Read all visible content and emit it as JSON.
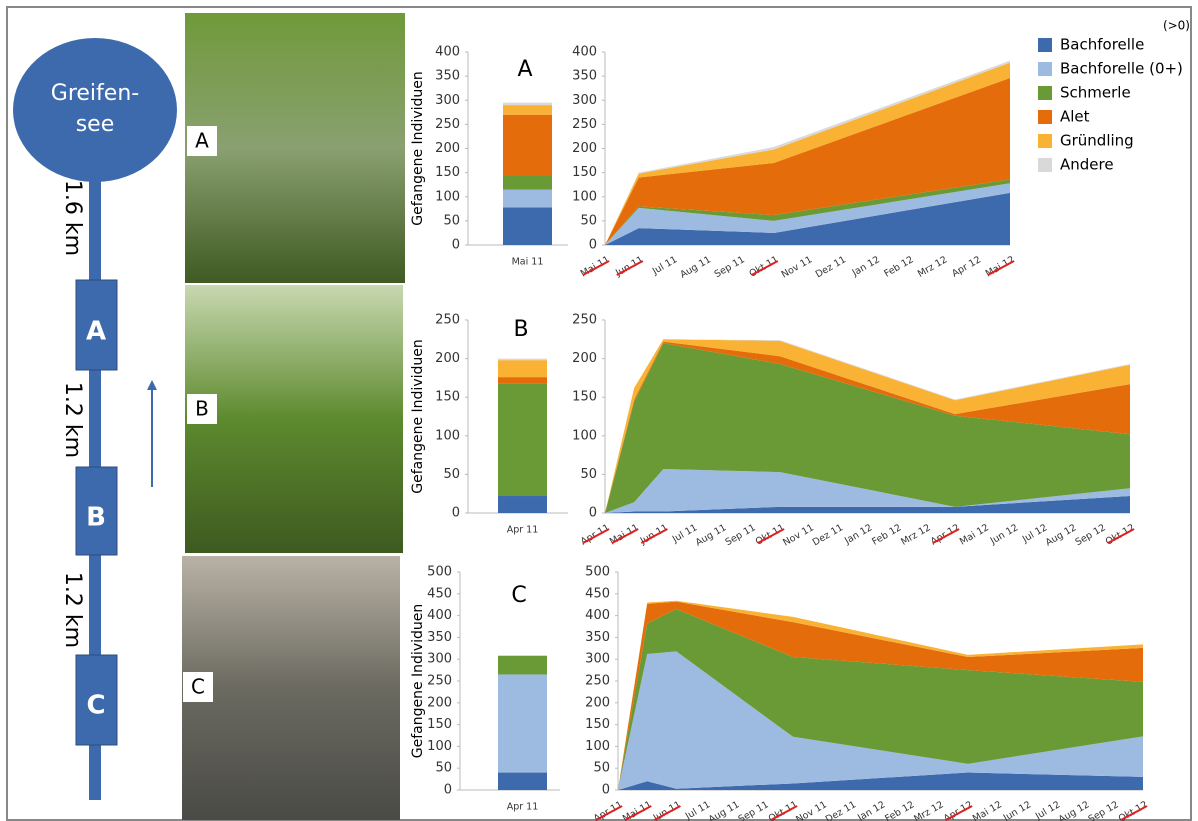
{
  "diagram": {
    "lake": [
      "Greifen-",
      "see"
    ],
    "stations": [
      "A",
      "B",
      "C"
    ],
    "distances": [
      "1.6 km",
      "1.2 km",
      "1.2 km"
    ],
    "photo_labels": [
      "A",
      "B",
      "C"
    ],
    "note": "(>0)"
  },
  "chart_data": [
    {
      "type": "bar",
      "title": "A",
      "y_label": "Gefangene Individuen",
      "categories": [
        "Mai 11"
      ],
      "ylim": [
        0,
        400
      ],
      "yticks": [
        0,
        50,
        100,
        150,
        200,
        250,
        300,
        350,
        400
      ],
      "series": [
        {
          "name": "Bachforelle",
          "color": "#3d6aad",
          "values": [
            78
          ]
        },
        {
          "name": "Bachforelle (0+)",
          "color": "#9dbbe0",
          "values": [
            37
          ]
        },
        {
          "name": "Schmerle",
          "color": "#6a9a35",
          "values": [
            30
          ]
        },
        {
          "name": "Alet",
          "color": "#e46c0a",
          "values": [
            125
          ]
        },
        {
          "name": "Gründling",
          "color": "#f9b233",
          "values": [
            20
          ]
        },
        {
          "name": "Andere",
          "color": "#d9d9d9",
          "values": [
            5
          ]
        }
      ]
    },
    {
      "type": "area",
      "legend": "top-right",
      "categories": [
        "Mai 11",
        "Jun 11",
        "Jul 11",
        "Aug 11",
        "Sep 11",
        "Okt 11",
        "Nov 11",
        "Dez 11",
        "Jan 12",
        "Feb 12",
        "Mrz 12",
        "Apr 12",
        "Mai 12"
      ],
      "x": [
        "Mai 11",
        "Jun 11",
        "Okt 11",
        "Mai 12"
      ],
      "ylim": [
        0,
        400
      ],
      "yticks": [
        0,
        50,
        100,
        150,
        200,
        250,
        300,
        350,
        400
      ],
      "series": [
        {
          "name": "Bachforelle",
          "color": "#3d6aad",
          "values": [
            0,
            35,
            25,
            108
          ]
        },
        {
          "name": "Bachforelle (0+)",
          "color": "#9dbbe0",
          "values": [
            0,
            42,
            25,
            20
          ]
        },
        {
          "name": "Schmerle",
          "color": "#6a9a35",
          "values": [
            0,
            3,
            12,
            8
          ]
        },
        {
          "name": "Alet",
          "color": "#e46c0a",
          "values": [
            0,
            60,
            108,
            210
          ]
        },
        {
          "name": "Gründling",
          "color": "#f9b233",
          "values": [
            0,
            8,
            28,
            32
          ]
        },
        {
          "name": "Andere",
          "color": "#d9d9d9",
          "values": [
            0,
            2,
            5,
            4
          ]
        }
      ]
    },
    {
      "type": "bar",
      "title": "B",
      "y_label": "Gefangene Individuen",
      "categories": [
        "Apr 11"
      ],
      "ylim": [
        0,
        250
      ],
      "yticks": [
        0,
        50,
        100,
        150,
        200,
        250
      ],
      "series": [
        {
          "name": "Bachforelle",
          "color": "#3d6aad",
          "values": [
            22
          ]
        },
        {
          "name": "Bachforelle (0+)",
          "color": "#9dbbe0",
          "values": [
            0
          ]
        },
        {
          "name": "Schmerle",
          "color": "#6a9a35",
          "values": [
            146
          ]
        },
        {
          "name": "Alet",
          "color": "#e46c0a",
          "values": [
            8
          ]
        },
        {
          "name": "Gründling",
          "color": "#f9b233",
          "values": [
            22
          ]
        },
        {
          "name": "Andere",
          "color": "#d9d9d9",
          "values": [
            2
          ]
        }
      ]
    },
    {
      "type": "area",
      "categories": [
        "Apr 11",
        "Mai 11",
        "Jun 11",
        "Jul 11",
        "Aug 11",
        "Sep 11",
        "Okt 11",
        "Nov 11",
        "Dez 11",
        "Jan 12",
        "Feb 12",
        "Mrz 12",
        "Apr 12",
        "Mai 12",
        "Jun 12",
        "Jul 12",
        "Aug 12",
        "Sep 12",
        "Okt 12"
      ],
      "x": [
        "Apr 11",
        "Mai 11",
        "Jun 11",
        "Okt 11",
        "Apr 12",
        "Okt 12"
      ],
      "ylim": [
        0,
        250
      ],
      "yticks": [
        0,
        50,
        100,
        150,
        200,
        250
      ],
      "series": [
        {
          "name": "Bachforelle",
          "color": "#3d6aad",
          "values": [
            0,
            2,
            2,
            8,
            8,
            22
          ]
        },
        {
          "name": "Bachforelle (0+)",
          "color": "#9dbbe0",
          "values": [
            0,
            12,
            55,
            45,
            0,
            10
          ]
        },
        {
          "name": "Schmerle",
          "color": "#6a9a35",
          "values": [
            0,
            130,
            163,
            140,
            118,
            70
          ]
        },
        {
          "name": "Alet",
          "color": "#e46c0a",
          "values": [
            0,
            3,
            2,
            10,
            2,
            65
          ]
        },
        {
          "name": "Gründling",
          "color": "#f9b233",
          "values": [
            0,
            15,
            3,
            20,
            18,
            25
          ]
        },
        {
          "name": "Andere",
          "color": "#d9d9d9",
          "values": [
            0,
            0,
            0,
            1,
            1,
            1
          ]
        }
      ]
    },
    {
      "type": "bar",
      "title": "C",
      "y_label": "Gefangene Individuen",
      "categories": [
        "Apr 11"
      ],
      "ylim": [
        0,
        500
      ],
      "yticks": [
        0,
        50,
        100,
        150,
        200,
        250,
        300,
        350,
        400,
        450,
        500
      ],
      "series": [
        {
          "name": "Bachforelle",
          "color": "#3d6aad",
          "values": [
            40
          ]
        },
        {
          "name": "Bachforelle (0+)",
          "color": "#9dbbe0",
          "values": [
            225
          ]
        },
        {
          "name": "Schmerle",
          "color": "#6a9a35",
          "values": [
            43
          ]
        },
        {
          "name": "Alet",
          "color": "#e46c0a",
          "values": [
            0
          ]
        },
        {
          "name": "Gründling",
          "color": "#f9b233",
          "values": [
            0
          ]
        },
        {
          "name": "Andere",
          "color": "#d9d9d9",
          "values": [
            0
          ]
        }
      ]
    },
    {
      "type": "area",
      "categories": [
        "Apr 11",
        "Mai 11",
        "Jun 11",
        "Jul 11",
        "Aug 11",
        "Sep 11",
        "Okt 11",
        "Nov 11",
        "Dez 11",
        "Jan 12",
        "Feb 12",
        "Mrz 12",
        "Apr 12",
        "Mai 12",
        "Jun 12",
        "Jul 12",
        "Aug 12",
        "Sep 12",
        "Okt 12"
      ],
      "x": [
        "Apr 11",
        "Mai 11",
        "Jun 11",
        "Okt 11",
        "Apr 12",
        "Okt 12"
      ],
      "ylim": [
        0,
        500
      ],
      "yticks": [
        0,
        50,
        100,
        150,
        200,
        250,
        300,
        350,
        400,
        450,
        500
      ],
      "series": [
        {
          "name": "Bachforelle",
          "color": "#3d6aad",
          "values": [
            0,
            20,
            3,
            15,
            40,
            30
          ]
        },
        {
          "name": "Bachforelle (0+)",
          "color": "#9dbbe0",
          "values": [
            0,
            292,
            315,
            107,
            20,
            93
          ]
        },
        {
          "name": "Schmerle",
          "color": "#6a9a35",
          "values": [
            0,
            70,
            97,
            183,
            215,
            125
          ]
        },
        {
          "name": "Alet",
          "color": "#e46c0a",
          "values": [
            0,
            45,
            17,
            80,
            30,
            78
          ]
        },
        {
          "name": "Gründling",
          "color": "#f9b233",
          "values": [
            0,
            3,
            2,
            12,
            5,
            8
          ]
        },
        {
          "name": "Andere",
          "color": "#d9d9d9",
          "values": [
            0,
            0,
            0,
            0,
            0,
            0
          ]
        }
      ]
    }
  ]
}
